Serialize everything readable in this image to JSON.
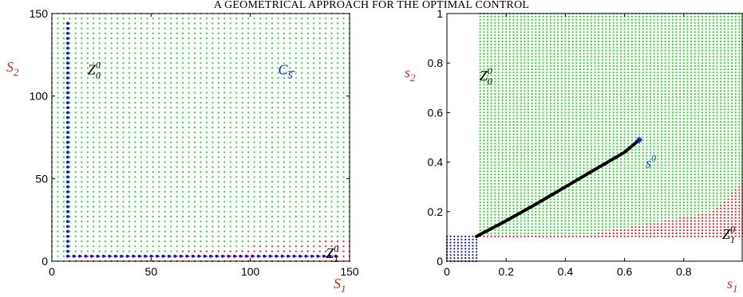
{
  "header": {
    "running_title": "A GEOMETRICAL APPROACH FOR THE OPTIMAL CONTROL"
  },
  "colors": {
    "green": "#22dd22",
    "red": "#e02020",
    "blue": "#1111dd",
    "black": "#000000",
    "axis_label_red": "#e02020",
    "label_blue": "#1a3fd0"
  },
  "chart_data": [
    {
      "type": "scatter",
      "title": "",
      "xlabel": "S",
      "xlabel_sub": "1",
      "ylabel": "S",
      "ylabel_sub": "2",
      "xlim": [
        0,
        150
      ],
      "ylim": [
        0,
        150
      ],
      "x_ticks": [
        0,
        50,
        100,
        150
      ],
      "y_ticks": [
        0,
        50,
        100,
        150
      ],
      "grid_step": 3,
      "series": [
        {
          "color": "green",
          "rule": "lattice points outside the red region"
        },
        {
          "color": "red",
          "rule": "region near the S1 axis: S2 <= 3 for S1 >= 9; S2 <= 6 for S1 >= 66; S2 <= 9 for S1 >= 102; S2 <= 12 for S1 >= 135"
        },
        {
          "color": "blue",
          "points_desc": "L-shaped boundary: vertical line S1 = 8 from S2 = 3 to 145, horizontal line S2 = 3 from S1 = 8 to 145"
        }
      ],
      "annotations": [
        {
          "text": "Z",
          "sup": "0",
          "sub": "0",
          "x": 18,
          "y": 113,
          "color": "black"
        },
        {
          "text": "C",
          "sub": "S",
          "x": 114,
          "y": 113,
          "color": "blue"
        },
        {
          "text": "Z",
          "sup": "0",
          "sub": "1",
          "x": 138,
          "y": 2,
          "color": "black"
        }
      ]
    },
    {
      "type": "scatter",
      "title": "",
      "xlabel": "s",
      "xlabel_sub": "1",
      "ylabel": "s",
      "ylabel_sub": "2",
      "xlim": [
        0,
        1
      ],
      "ylim": [
        0,
        1
      ],
      "x_ticks": [
        0,
        0.2,
        0.4,
        0.6,
        0.8
      ],
      "x_tick_labels": [
        "0",
        "0.2",
        "0.4",
        "0.6",
        "0.8"
      ],
      "y_ticks": [
        0,
        0.2,
        0.4,
        0.6,
        0.8,
        1
      ],
      "y_tick_labels": [
        "0",
        "0.2",
        "0.4",
        "0.6",
        "0.8",
        "1"
      ],
      "grid_step": 0.0125,
      "series": [
        {
          "color": "blue",
          "rule": "points with s1 <= 0.1 and s2 <= 0.1"
        },
        {
          "color": "red",
          "rule": "s1 >= 0.1 and 0.1 <= s2 <= boundary; boundary = 0.1 up to s1 = 0.45, rising to about 0.2 at s1 = 0.9 and 0.32 at s1 = 1"
        },
        {
          "color": "green",
          "rule": "s1 >= 0.1 and s2 above the red boundary"
        },
        {
          "color": "black",
          "kind": "trajectory",
          "x": [
            0.1,
            0.2,
            0.3,
            0.4,
            0.5,
            0.6,
            0.65
          ],
          "y": [
            0.1,
            0.163,
            0.23,
            0.3,
            0.37,
            0.44,
            0.49
          ]
        }
      ],
      "marker_point": {
        "label": "s",
        "sup": "0",
        "x": 0.65,
        "y": 0.49,
        "marker": "star",
        "color": "blue"
      },
      "annotations": [
        {
          "text": "Z",
          "sup": "0",
          "sub": "0",
          "x": 0.11,
          "y": 0.73,
          "color": "black"
        },
        {
          "text": "Z",
          "sup": "0",
          "sub": "1",
          "x": 0.93,
          "y": 0.09,
          "color": "black"
        }
      ]
    }
  ]
}
